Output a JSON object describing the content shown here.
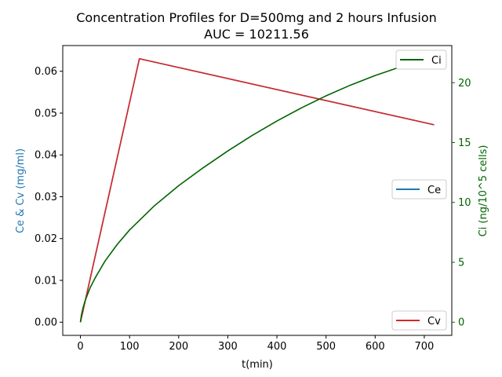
{
  "chart_data": {
    "type": "line",
    "title": [
      "Concentration Profiles for D=500mg and 2 hours Infusion",
      "AUC = 10211.56"
    ],
    "xlabel": "t(min)",
    "ylabel_left": "Ce & Cv (mg/ml)",
    "ylabel_right": "Ci (ng/10^5 cells)",
    "xlim": [
      -36,
      756
    ],
    "ylim_left": [
      -0.00315,
      0.06615
    ],
    "ylim_right": [
      -1.1,
      23.1
    ],
    "x_ticks": [
      0,
      100,
      200,
      300,
      400,
      500,
      600,
      700
    ],
    "y_left_ticks": [
      "0.00",
      "0.01",
      "0.02",
      "0.03",
      "0.04",
      "0.05",
      "0.06"
    ],
    "y_right_ticks": [
      0,
      5,
      10,
      15,
      20
    ],
    "colors": {
      "Ce": "#1f77b4",
      "Cv": "#d62728",
      "Ci": "#006400",
      "left_axis_label": "#1f77b4",
      "right_axis": "#006400"
    },
    "series": [
      {
        "name": "Ce",
        "axis": "left",
        "x": [
          0,
          120,
          720
        ],
        "y": [
          0.0,
          0.063,
          0.0472
        ]
      },
      {
        "name": "Cv",
        "axis": "left",
        "x": [
          0,
          120,
          720
        ],
        "y": [
          0.0,
          0.063,
          0.0472
        ]
      },
      {
        "name": "Ci",
        "axis": "right",
        "x": [
          0,
          2,
          5,
          10,
          20,
          30,
          50,
          75,
          100,
          125,
          150,
          200,
          250,
          300,
          350,
          400,
          450,
          500,
          550,
          600,
          650,
          700,
          720
        ],
        "y": [
          0,
          0.6,
          1.15,
          1.85,
          2.9,
          3.7,
          5.1,
          6.5,
          7.7,
          8.7,
          9.7,
          11.4,
          12.9,
          14.3,
          15.6,
          16.8,
          17.9,
          18.9,
          19.8,
          20.6,
          21.3,
          21.9,
          22.0
        ]
      }
    ],
    "legends": [
      {
        "labels": [
          "Ci"
        ],
        "placement": "top-right"
      },
      {
        "labels": [
          "Ce"
        ],
        "placement": "center-right"
      },
      {
        "labels": [
          "Cv"
        ],
        "placement": "bottom-right"
      }
    ]
  }
}
